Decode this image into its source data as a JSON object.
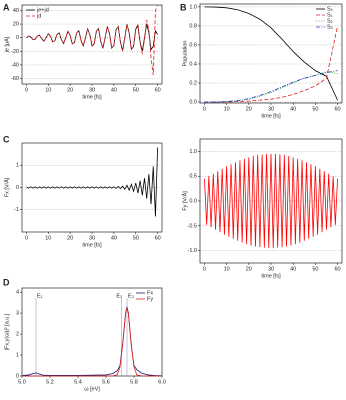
{
  "chart_data": [
    {
      "type": "line",
      "panel": "A",
      "xlabel": "time [fs]",
      "ylabel": "je [μA]",
      "grid": true,
      "legend": "top-left",
      "xlim": [
        -2,
        62
      ],
      "ylim": [
        -68,
        48
      ],
      "xticks": [
        0,
        10,
        20,
        30,
        40,
        50,
        60
      ],
      "yticks": [
        -60,
        -40,
        -20,
        0,
        20,
        40
      ],
      "x": [
        0,
        1,
        2,
        3,
        4,
        5,
        6,
        7,
        8,
        9,
        10,
        11,
        12,
        13,
        14,
        15,
        16,
        17,
        18,
        19,
        20,
        21,
        22,
        23,
        24,
        25,
        26,
        27,
        28,
        29,
        30,
        31,
        32,
        33,
        34,
        35,
        36,
        37,
        38,
        39,
        40,
        41,
        42,
        43,
        44,
        45,
        46,
        47,
        48,
        49,
        50,
        51,
        52,
        53,
        54,
        55,
        56,
        57,
        58,
        59,
        60
      ],
      "series": [
        {
          "name": "je+jd",
          "color": "#000000",
          "dash": "solid",
          "values": [
            0,
            2.4,
            1.0,
            -2.8,
            -2.3,
            2.6,
            3.8,
            -1.6,
            -5.1,
            0,
            5.9,
            2.2,
            -5.9,
            -4.6,
            4.9,
            7.0,
            -2.9,
            -8.6,
            0,
            9.4,
            3.4,
            -9.0,
            -6.9,
            7.2,
            10.1,
            -4.1,
            -12.2,
            0,
            12.9,
            4.6,
            -12.2,
            -9.2,
            9.5,
            13.2,
            -5.3,
            -15.7,
            0,
            16.5,
            5.8,
            -15.3,
            -11.5,
            11.8,
            16.4,
            -6.5,
            -19.2,
            0,
            19.6,
            6.8,
            -17.4,
            -12.8,
            12.8,
            17.4,
            -6.8,
            -19.6,
            0,
            19.6,
            6.8,
            -17.4,
            -12.8,
            10,
            5
          ]
        },
        {
          "name": "jd",
          "color": "#e02020",
          "dash": "dashed",
          "values": [
            0,
            2.4,
            1.0,
            -2.8,
            -2.3,
            2.6,
            3.8,
            -1.6,
            -5.1,
            0,
            5.9,
            2.2,
            -5.9,
            -4.6,
            4.9,
            7.0,
            -2.9,
            -8.6,
            0,
            9.4,
            3.4,
            -9.0,
            -6.9,
            7.2,
            10.1,
            -4.1,
            -12.2,
            0,
            12.9,
            4.6,
            -12.2,
            -9.2,
            9.5,
            13.2,
            -5.3,
            -15.7,
            0,
            16.5,
            5.8,
            -15.3,
            -11.5,
            11.8,
            16.4,
            -6.5,
            -19.2,
            0,
            19.6,
            6.8,
            -17.4,
            -12.8,
            14,
            19,
            -8,
            -24,
            -2,
            26,
            12,
            -30,
            -55,
            40,
            48
          ]
        }
      ]
    },
    {
      "type": "line",
      "panel": "B",
      "xlabel": "time [fs]",
      "ylabel": "Population",
      "grid": true,
      "legend": "top-right",
      "xlim": [
        -2,
        62
      ],
      "ylim": [
        -0.01,
        1.03
      ],
      "xticks": [
        0,
        10,
        20,
        30,
        40,
        50,
        60
      ],
      "yticks": [
        {
          "value": 0,
          "label": "0.0"
        },
        0.2,
        0.4,
        0.6,
        0.8,
        {
          "value": 1,
          "label": "1.0"
        }
      ],
      "x": [
        0,
        5,
        10,
        15,
        20,
        25,
        30,
        35,
        40,
        45,
        50,
        55,
        60
      ],
      "series": [
        {
          "name": "S₀",
          "color": "#000000",
          "dash": "solid",
          "values": [
            1.0,
            0.998,
            0.99,
            0.97,
            0.93,
            0.87,
            0.78,
            0.66,
            0.53,
            0.42,
            0.33,
            0.27,
            0.02
          ]
        },
        {
          "name": "S₁",
          "color": "#e02020",
          "dash": "dashed",
          "values": [
            0,
            0,
            0,
            0.005,
            0.01,
            0.02,
            0.03,
            0.05,
            0.08,
            0.12,
            0.17,
            0.25,
            0.8
          ]
        },
        {
          "name": "S₂",
          "color": "#2ca02c",
          "dash": "dotted",
          "values": [
            0,
            0,
            0.005,
            0.015,
            0.03,
            0.06,
            0.1,
            0.15,
            0.2,
            0.25,
            0.28,
            0.32,
            0.3
          ]
        },
        {
          "name": "S₃",
          "color": "#1f3fbf",
          "dash": "dashdot",
          "values": [
            0,
            0,
            0.005,
            0.015,
            0.035,
            0.07,
            0.11,
            0.16,
            0.21,
            0.25,
            0.28,
            0.31,
            0.33
          ]
        }
      ]
    },
    {
      "type": "line",
      "panel": "C",
      "xlabel": "time [fs]",
      "ylabel": "Fx [V/Å]",
      "grid": true,
      "xlim": [
        -2,
        62
      ],
      "ylim": [
        -2,
        2
      ],
      "xticks": [
        0,
        10,
        20,
        30,
        40,
        50,
        60
      ],
      "yticks": [
        -1,
        0,
        1
      ],
      "x": [
        0,
        1,
        2,
        3,
        4,
        5,
        6,
        7,
        8,
        9,
        10,
        11,
        12,
        13,
        14,
        15,
        16,
        17,
        18,
        19,
        20,
        21,
        22,
        23,
        24,
        25,
        26,
        27,
        28,
        29,
        30,
        31,
        32,
        33,
        34,
        35,
        36,
        37,
        38,
        39,
        40,
        41,
        42,
        43,
        44,
        45,
        46,
        47,
        48,
        49,
        50,
        51,
        52,
        53,
        54,
        55,
        56,
        57,
        58,
        59,
        60
      ],
      "series": [
        {
          "color": "#000000",
          "dash": "solid",
          "values": [
            0.03,
            -0.03,
            0.03,
            -0.03,
            0.03,
            -0.03,
            0.03,
            -0.03,
            0.03,
            -0.03,
            0.03,
            -0.03,
            0.03,
            -0.03,
            0.03,
            -0.03,
            0.03,
            -0.03,
            0.03,
            -0.03,
            0.03,
            -0.03,
            0.03,
            -0.03,
            0.03,
            -0.03,
            0.03,
            -0.03,
            0.03,
            -0.03,
            0.03,
            -0.03,
            0.03,
            -0.03,
            0.03,
            -0.03,
            0.03,
            -0.03,
            0.03,
            -0.03,
            0.03,
            -0.04,
            0.05,
            -0.05,
            0.06,
            -0.08,
            0.1,
            -0.12,
            0.14,
            -0.17,
            0.2,
            -0.25,
            0.3,
            -0.35,
            0.42,
            -0.5,
            0.6,
            -0.75,
            0.95,
            -1.3,
            1.8
          ]
        }
      ]
    },
    {
      "type": "line",
      "xlabel": "time [fs]",
      "ylabel": "Fy [V/Å]",
      "grid": true,
      "xlim": [
        -2,
        62
      ],
      "ylim": [
        -1.25,
        1.25
      ],
      "xticks": [
        0,
        10,
        20,
        30,
        40,
        50,
        60
      ],
      "yticks": [
        {
          "value": -1,
          "label": "-1.0"
        },
        -0.5,
        {
          "value": 0,
          "label": "0.0"
        },
        0.5,
        {
          "value": 1,
          "label": "1.0"
        }
      ],
      "x": [
        0,
        1,
        2,
        3,
        4,
        5,
        6,
        7,
        8,
        9,
        10,
        11,
        12,
        13,
        14,
        15,
        16,
        17,
        18,
        19,
        20,
        21,
        22,
        23,
        24,
        25,
        26,
        27,
        28,
        29,
        30,
        31,
        32,
        33,
        34,
        35,
        36,
        37,
        38,
        39,
        40,
        41,
        42,
        43,
        44,
        45,
        46,
        47,
        48,
        49,
        50,
        51,
        52,
        53,
        54,
        55,
        56,
        57,
        58,
        59,
        60
      ],
      "series": [
        {
          "color": "#ff0000",
          "dash": "solid",
          "values": [
            0.45,
            -0.48,
            0.5,
            -0.53,
            0.55,
            -0.58,
            0.6,
            -0.63,
            0.65,
            -0.68,
            0.7,
            -0.72,
            0.74,
            -0.76,
            0.78,
            -0.8,
            0.82,
            -0.84,
            0.85,
            -0.87,
            0.88,
            -0.9,
            0.91,
            -0.92,
            0.93,
            -0.93,
            0.94,
            -0.94,
            0.95,
            -0.95,
            0.95,
            -0.95,
            0.95,
            -0.94,
            0.94,
            -0.93,
            0.93,
            -0.92,
            0.91,
            -0.9,
            0.88,
            -0.87,
            0.85,
            -0.84,
            0.82,
            -0.8,
            0.78,
            -0.76,
            0.74,
            -0.72,
            0.7,
            -0.68,
            0.65,
            -0.63,
            0.6,
            -0.58,
            0.55,
            -0.53,
            0.5,
            -0.48,
            0.45
          ]
        }
      ]
    },
    {
      "type": "line",
      "panel": "D",
      "xlabel": "ω [eV]",
      "ylabel": "|Fx,y(ω)|² [a.u.]",
      "grid": false,
      "legend": "top-right",
      "xlim": [
        5,
        6
      ],
      "ylim": [
        0,
        4.2
      ],
      "xticks": [
        {
          "value": 5,
          "label": "5.0"
        },
        5.2,
        5.4,
        5.6,
        5.8,
        {
          "value": 6,
          "label": "6.0"
        }
      ],
      "yticks": [
        0,
        1,
        2,
        3,
        4
      ],
      "annotations": [
        {
          "text": "E₁",
          "x": 5.1
        },
        {
          "text": "E₂",
          "x": 5.71
        },
        {
          "text": "E₃",
          "x": 5.75
        }
      ],
      "x": [
        5.0,
        5.05,
        5.08,
        5.1,
        5.12,
        5.15,
        5.2,
        5.3,
        5.4,
        5.5,
        5.6,
        5.65,
        5.68,
        5.7,
        5.72,
        5.74,
        5.75,
        5.76,
        5.78,
        5.8,
        5.82,
        5.85,
        5.9,
        5.95,
        6.0
      ],
      "series": [
        {
          "name": "Fx",
          "color": "#1a1a6e",
          "dash": "solid",
          "values": [
            0.02,
            0.05,
            0.12,
            0.15,
            0.1,
            0.04,
            0.03,
            0.03,
            0.03,
            0.04,
            0.05,
            0.12,
            0.25,
            0.5,
            1.6,
            3.0,
            3.3,
            3.0,
            1.5,
            0.5,
            0.3,
            0.15,
            0.05,
            0.02,
            0.01
          ]
        },
        {
          "name": "Fy",
          "color": "#e02020",
          "dash": "solid",
          "values": [
            0,
            0,
            0,
            0,
            0,
            0,
            0,
            0,
            0,
            0,
            0,
            0.01,
            0.06,
            0.42,
            1.56,
            2.99,
            3.25,
            2.99,
            1.56,
            0.42,
            0.06,
            0.01,
            0,
            0,
            0
          ]
        }
      ]
    }
  ]
}
